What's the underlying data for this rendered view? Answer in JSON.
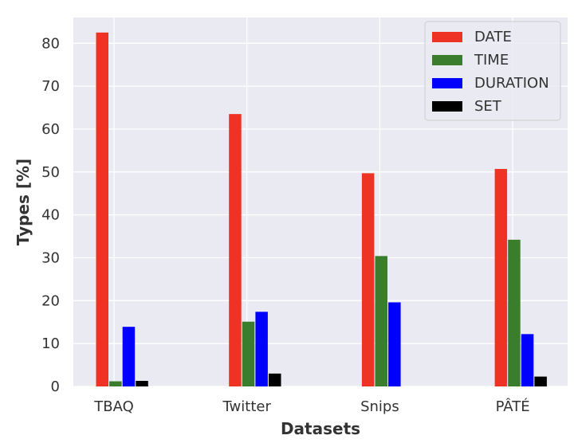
{
  "chart_data": {
    "type": "bar",
    "xlabel": "Datasets",
    "ylabel": "Types [%]",
    "categories": [
      "TBAQ",
      "Twitter",
      "Snips",
      "PÂTÉ"
    ],
    "ylim": [
      0,
      86
    ],
    "yticks": [
      0,
      10,
      20,
      30,
      40,
      50,
      60,
      70,
      80
    ],
    "grid": true,
    "legend_position": "top-right",
    "series": [
      {
        "name": "DATE",
        "color": "#ee3224",
        "values": [
          82.5,
          63.5,
          49.7,
          50.7
        ]
      },
      {
        "name": "TIME",
        "color": "#3a7d2c",
        "values": [
          1.2,
          15.1,
          30.4,
          34.2
        ]
      },
      {
        "name": "DURATION",
        "color": "#0000ff",
        "values": [
          13.9,
          17.4,
          19.6,
          12.2
        ]
      },
      {
        "name": "SET",
        "color": "#000000",
        "values": [
          1.3,
          3.0,
          0.0,
          2.3
        ]
      }
    ]
  }
}
